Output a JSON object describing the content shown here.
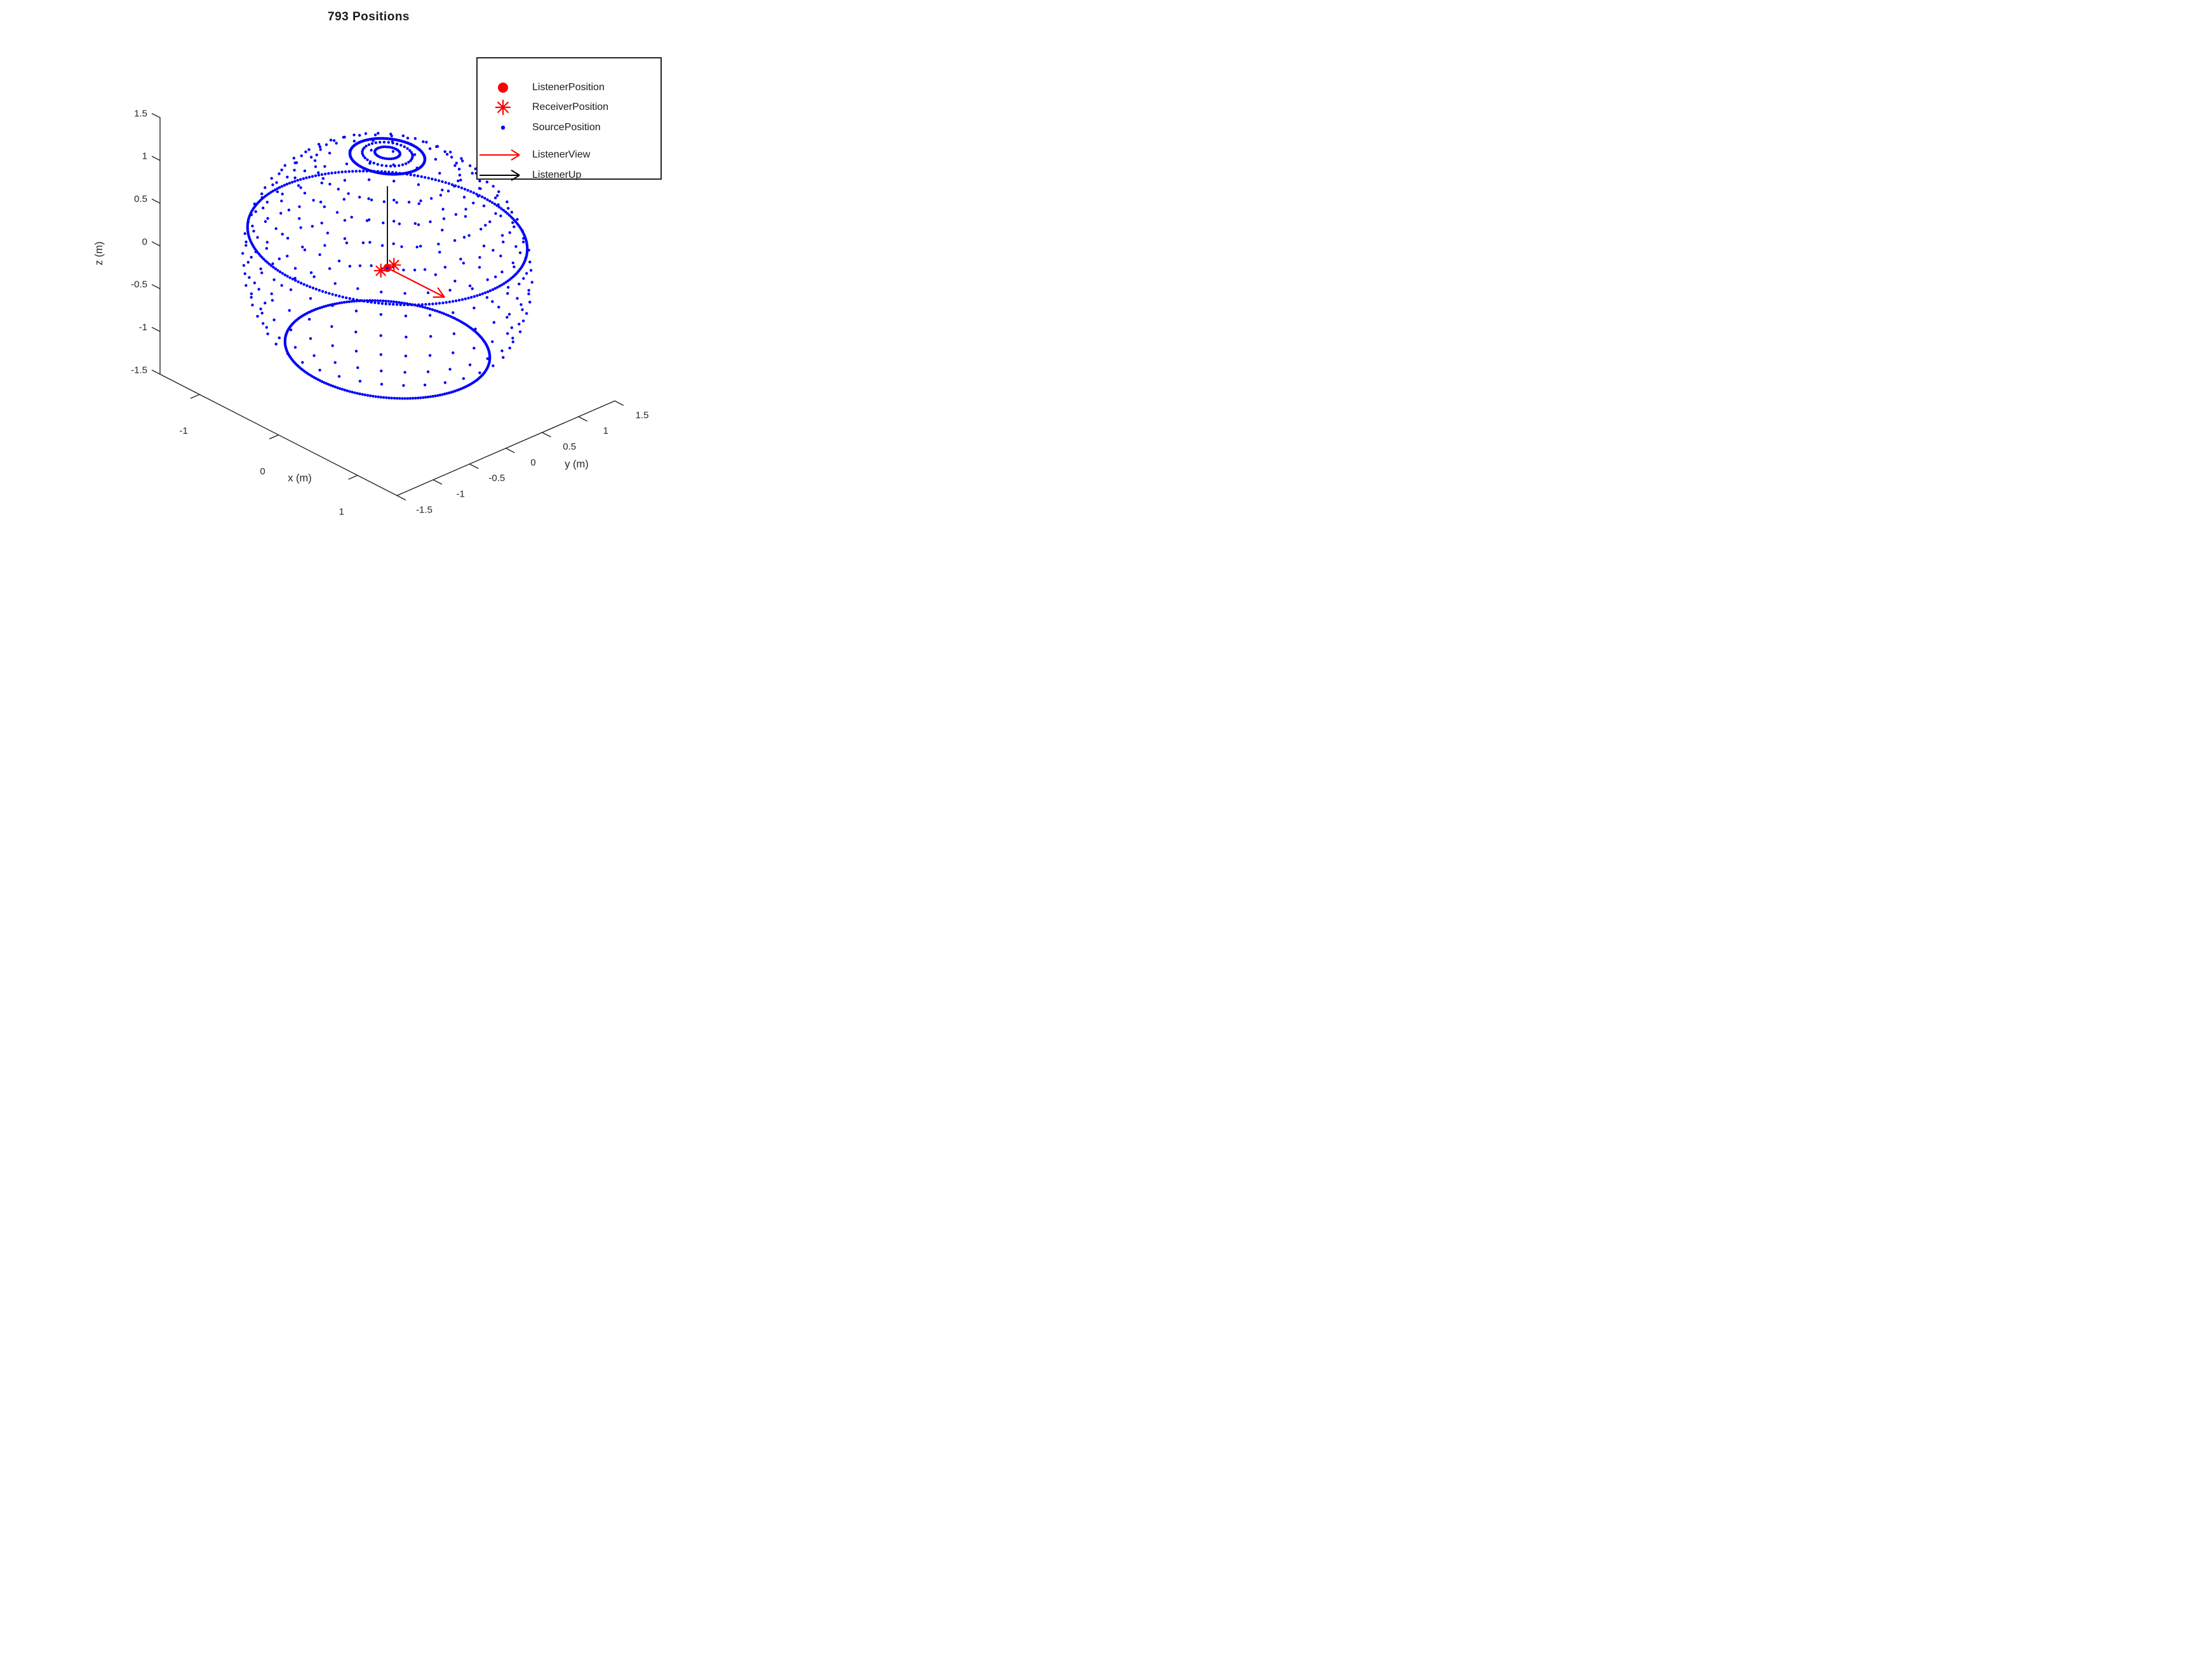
{
  "title": "793 Positions",
  "figure": {
    "background": "#ffffff",
    "text_color": "#262626",
    "axis_color": "#262626",
    "source_color": "#0000ff",
    "listener_color": "#ff0000",
    "up_color": "#000000"
  },
  "legend": {
    "position": "upper-right",
    "items": [
      {
        "label": "ListenerPosition",
        "marker": "filled-circle",
        "color": "#ff0000"
      },
      {
        "label": "ReceiverPosition",
        "marker": "asterisk",
        "color": "#ff0000"
      },
      {
        "label": "SourcePosition",
        "marker": "small-dot",
        "color": "#0000ff"
      },
      {
        "label": "ListenerView",
        "marker": "arrow",
        "color": "#ff0000"
      },
      {
        "label": "ListenerUp",
        "marker": "arrow",
        "color": "#000000"
      }
    ]
  },
  "chart_data": {
    "type": "scatter",
    "subtype": "3d-scatter-sphere",
    "title": "793 Positions",
    "position_count": 793,
    "xlabel": "x (m)",
    "ylabel": "y (m)",
    "zlabel": "z (m)",
    "x_range": [
      -1.5,
      1.5
    ],
    "y_range": [
      -1.5,
      1.5
    ],
    "z_range": [
      -1.5,
      1.5
    ],
    "x_ticks": [
      "-1",
      "0",
      "1"
    ],
    "x_tick_values": [
      -1,
      0,
      1
    ],
    "y_ticks": [
      "-1.5",
      "-1",
      "-0.5",
      "0",
      "0.5",
      "1",
      "1.5"
    ],
    "y_tick_values": [
      -1.5,
      -1,
      -0.5,
      0,
      0.5,
      1,
      1.5
    ],
    "z_ticks": [
      "1.5",
      "1",
      "0.5",
      "0",
      "-0.5",
      "-1",
      "-1.5"
    ],
    "z_tick_values": [
      1.5,
      1,
      0.5,
      0,
      -0.5,
      -1,
      -1.5
    ],
    "grid": false,
    "legend_position": "upper-right",
    "source_positions": {
      "shape": "sphere",
      "radius_m": 1.35,
      "center": [
        0,
        0,
        -0.1
      ],
      "sparse_ring_elevations_deg": [
        -30,
        -20,
        -10,
        0,
        10,
        20,
        30,
        40,
        50,
        60,
        80,
        85
      ],
      "sparse_azimuth_step_deg": 10,
      "dense_ring_elevations_deg": [
        -45,
        15,
        75
      ],
      "dense_azimuth_step_deg": 1.5,
      "marker_color": "#0000ff"
    },
    "listener_position": [
      0,
      0,
      -0.1
    ],
    "receiver_positions": [
      [
        0,
        0.09,
        -0.1
      ],
      [
        0,
        -0.09,
        -0.1
      ]
    ],
    "listener_view_vector": {
      "direction": [
        1,
        0,
        0
      ],
      "length_m": 0.72,
      "color": "#ff0000"
    },
    "listener_up_vector": {
      "direction": [
        0,
        0,
        1
      ],
      "length_m": 0.95,
      "color": "#000000"
    }
  }
}
